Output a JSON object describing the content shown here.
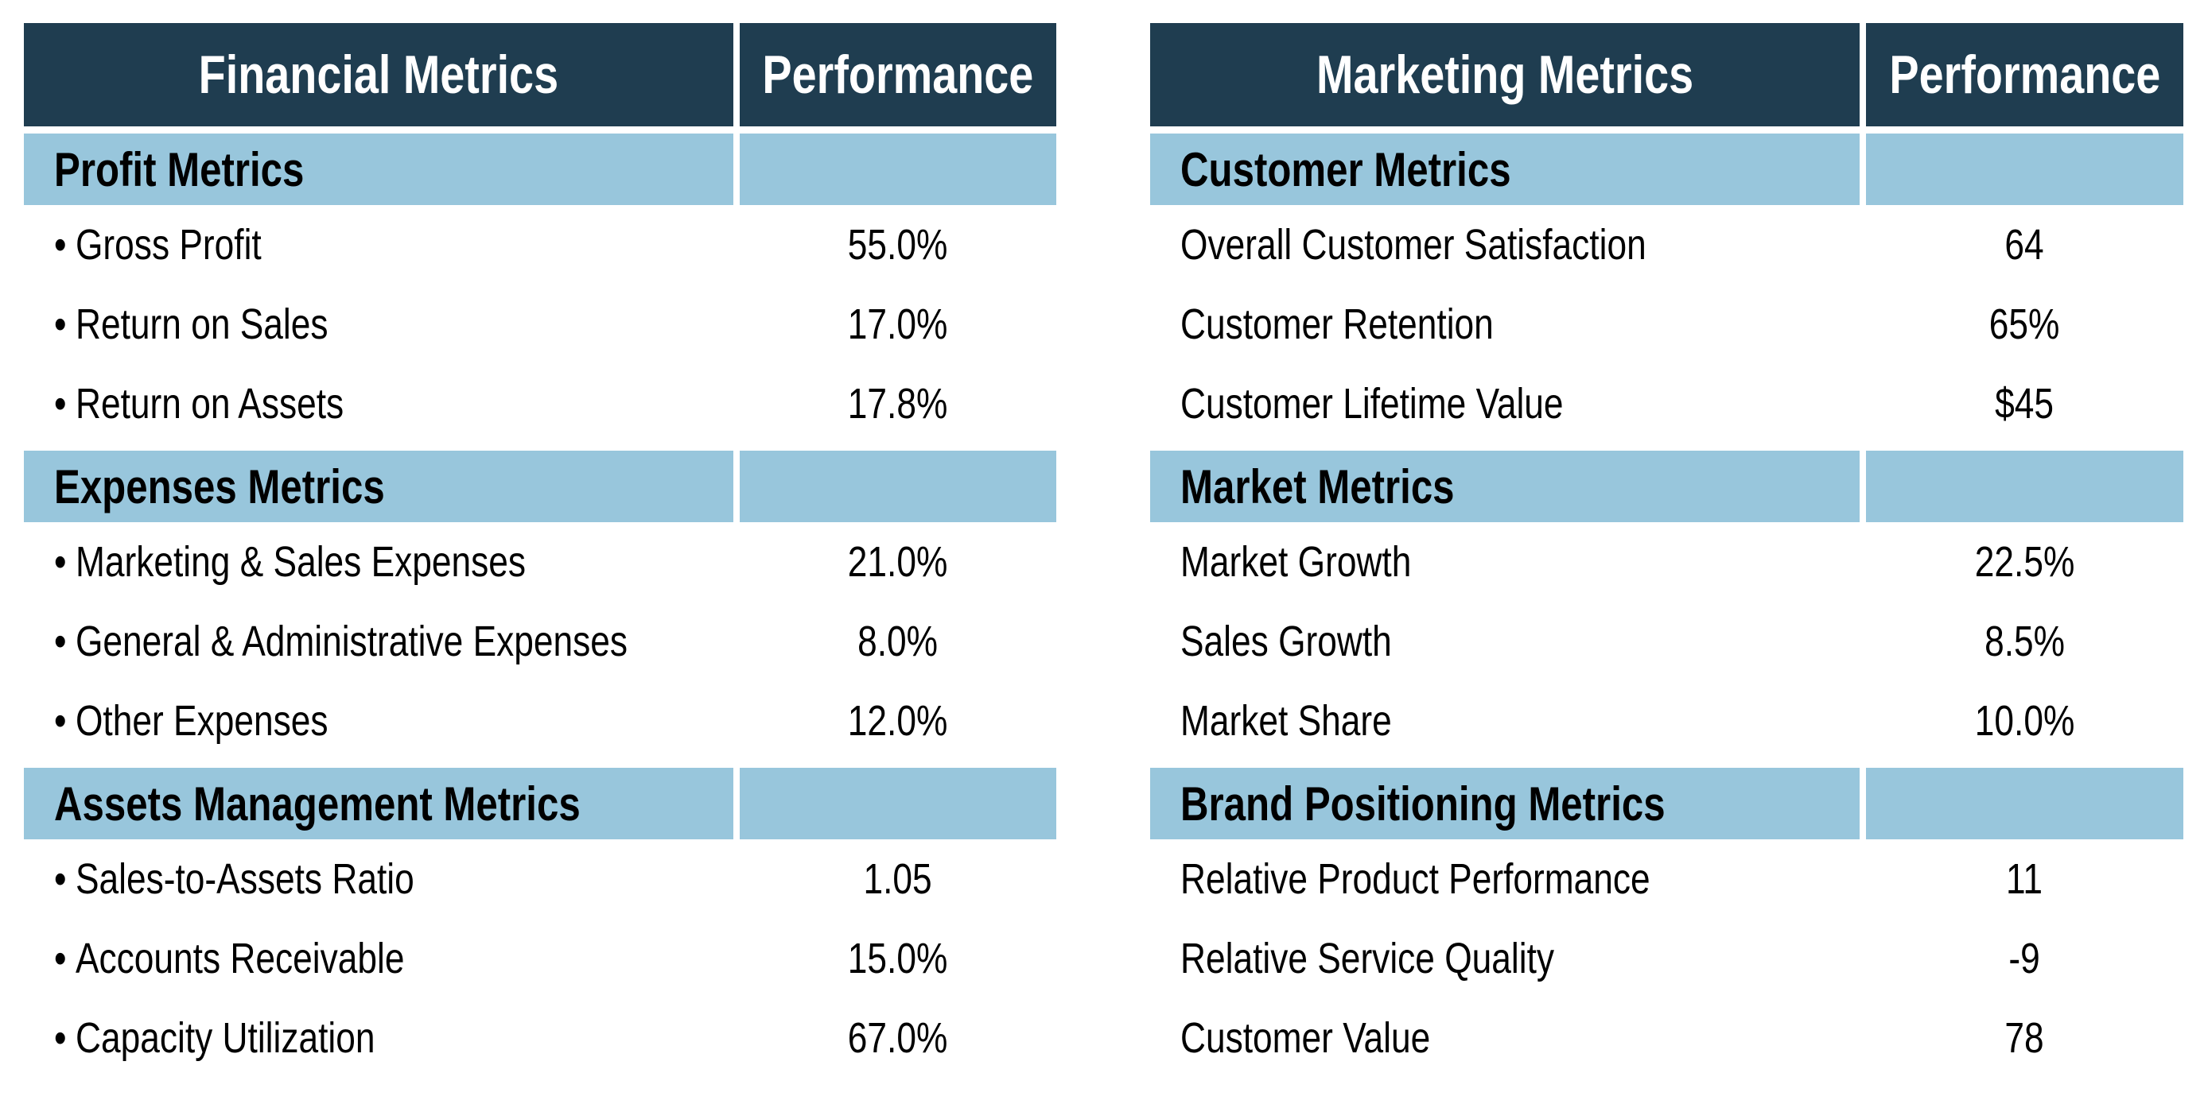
{
  "colors": {
    "header_bg": "#1f3d50",
    "section_bg": "#98c6dc"
  },
  "financial": {
    "header": "Financial Metrics",
    "perf_header": "Performance",
    "bullet": "•",
    "sections": [
      {
        "title": "Profit Metrics",
        "rows": [
          {
            "label": "Gross Profit",
            "value": "55.0%"
          },
          {
            "label": "Return on Sales",
            "value": "17.0%"
          },
          {
            "label": "Return on Assets",
            "value": "17.8%"
          }
        ]
      },
      {
        "title": "Expenses Metrics",
        "rows": [
          {
            "label": "Marketing & Sales Expenses",
            "value": "21.0%"
          },
          {
            "label": "General & Administrative Expenses",
            "value": "8.0%"
          },
          {
            "label": "Other Expenses",
            "value": "12.0%"
          }
        ]
      },
      {
        "title": "Assets Management Metrics",
        "rows": [
          {
            "label": "Sales-to-Assets Ratio",
            "value": "1.05"
          },
          {
            "label": "Accounts Receivable",
            "value": "15.0%"
          },
          {
            "label": "Capacity Utilization",
            "value": "67.0%"
          }
        ]
      }
    ]
  },
  "marketing": {
    "header": "Marketing Metrics",
    "perf_header": "Performance",
    "sections": [
      {
        "title": "Customer Metrics",
        "rows": [
          {
            "label": "Overall Customer Satisfaction",
            "value": "64"
          },
          {
            "label": "Customer Retention",
            "value": "65%"
          },
          {
            "label": "Customer Lifetime Value",
            "value": "$45"
          }
        ]
      },
      {
        "title": "Market Metrics",
        "rows": [
          {
            "label": "Market Growth",
            "value": "22.5%"
          },
          {
            "label": "Sales Growth",
            "value": "8.5%"
          },
          {
            "label": "Market Share",
            "value": "10.0%"
          }
        ]
      },
      {
        "title": "Brand Positioning Metrics",
        "rows": [
          {
            "label": "Relative Product Performance",
            "value": "11"
          },
          {
            "label": "Relative Service Quality",
            "value": "-9"
          },
          {
            "label": "Customer Value",
            "value": "78"
          }
        ]
      }
    ]
  }
}
